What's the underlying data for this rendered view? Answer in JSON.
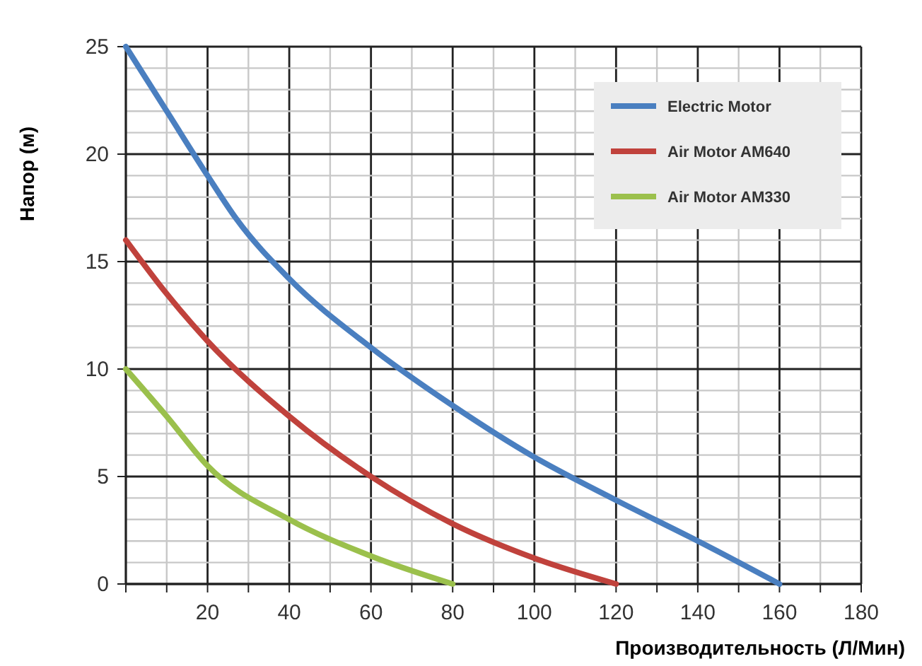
{
  "chart_data": {
    "type": "line",
    "xlabel": "Производительность (Л/Мин)",
    "ylabel": "Напор (м)",
    "xlim": [
      0,
      180
    ],
    "ylim": [
      0,
      25
    ],
    "xticks": [
      {
        "value": 0,
        "label": null
      },
      {
        "value": 10,
        "label": null
      },
      20,
      {
        "value": 30,
        "label": null
      },
      40,
      {
        "value": 50,
        "label": null
      },
      60,
      {
        "value": 70,
        "label": null
      },
      80,
      {
        "value": 90,
        "label": null
      },
      100,
      {
        "value": 110,
        "label": null
      },
      120,
      {
        "value": 130,
        "label": null
      },
      140,
      {
        "value": 150,
        "label": null
      },
      160,
      {
        "value": 170,
        "label": null
      },
      180
    ],
    "yticks": [
      0,
      {
        "value": 1,
        "label": null
      },
      {
        "value": 2,
        "label": null
      },
      {
        "value": 3,
        "label": null
      },
      {
        "value": 4,
        "label": null
      },
      5,
      {
        "value": 6,
        "label": null
      },
      {
        "value": 7,
        "label": null
      },
      {
        "value": 8,
        "label": null
      },
      {
        "value": 9,
        "label": null
      },
      10,
      {
        "value": 11,
        "label": null
      },
      {
        "value": 12,
        "label": null
      },
      {
        "value": 13,
        "label": null
      },
      {
        "value": 14,
        "label": null
      },
      15,
      {
        "value": 16,
        "label": null
      },
      {
        "value": 17,
        "label": null
      },
      {
        "value": 18,
        "label": null
      },
      {
        "value": 19,
        "label": null
      },
      20,
      {
        "value": 21,
        "label": null
      },
      {
        "value": 22,
        "label": null
      },
      {
        "value": 23,
        "label": null
      },
      {
        "value": 24,
        "label": null
      },
      25
    ],
    "grid": true,
    "legend": "top right",
    "marker": "none",
    "line_style": "solid",
    "series": [
      {
        "name": "Electric Motor",
        "color": "#4a7fc0",
        "x": [
          0,
          10,
          20,
          27,
          40,
          60,
          80,
          100,
          120,
          140,
          160
        ],
        "values": [
          25,
          22,
          19,
          17,
          14.2,
          11,
          8.3,
          5.9,
          3.9,
          2,
          0
        ]
      },
      {
        "name": "Air Motor AM640",
        "color": "#c0423c",
        "x": [
          0,
          10,
          20,
          40,
          60,
          80,
          100,
          120
        ],
        "values": [
          16,
          13.5,
          11.3,
          7.8,
          5,
          2.8,
          1.2,
          0
        ]
      },
      {
        "name": "Air Motor AM330",
        "color": "#9bc04c",
        "x": [
          0,
          10,
          20,
          40,
          60,
          80
        ],
        "values": [
          10,
          7.8,
          5.5,
          3,
          1.3,
          0
        ]
      }
    ]
  }
}
